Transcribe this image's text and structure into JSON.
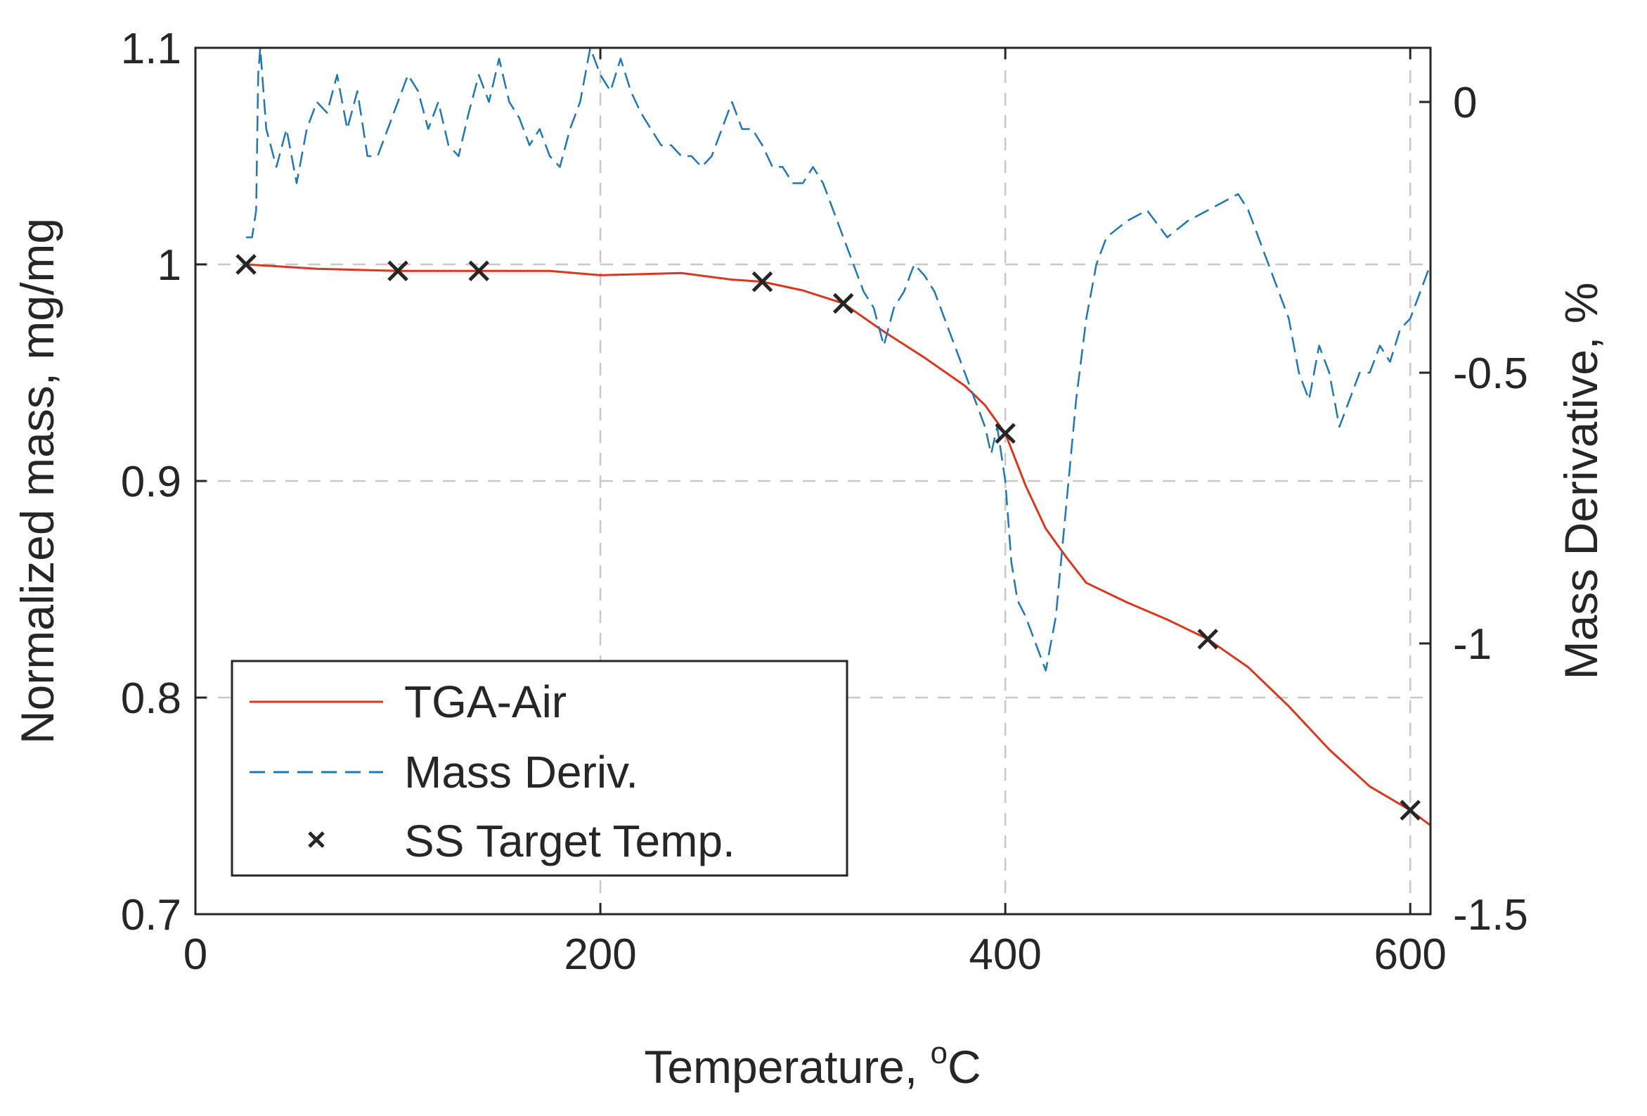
{
  "chart_data": {
    "type": "line",
    "xlabel": "Temperature, ",
    "xlabel_sup": "o",
    "xlabel_unit": "C",
    "ylabel_left": "Normalized mass, mg/mg",
    "ylabel_right": "Mass Derivative, %",
    "xlim": [
      0,
      610
    ],
    "ylim_left": [
      0.7,
      1.1
    ],
    "ylim_right": [
      -1.5,
      0.1
    ],
    "x_ticks": [
      "0",
      "200",
      "400",
      "600"
    ],
    "x_tick_values": [
      0,
      200,
      400,
      600
    ],
    "y_left_ticks": [
      "0.7",
      "0.8",
      "0.9",
      "1",
      "1.1"
    ],
    "y_left_tick_values": [
      0.7,
      0.8,
      0.9,
      1.0,
      1.1
    ],
    "y_right_ticks": [
      "-1.5",
      "-1",
      "-0.5",
      "0"
    ],
    "y_right_tick_values": [
      -1.5,
      -1.0,
      -0.5,
      0.0
    ],
    "grid": true,
    "legend_position": "bottom-left",
    "series": [
      {
        "name": "TGA-Air",
        "axis": "left",
        "style": "solid",
        "color": "#d9381e",
        "x": [
          25,
          60,
          100,
          140,
          175,
          200,
          240,
          265,
          280,
          300,
          320,
          340,
          360,
          380,
          390,
          400,
          410,
          420,
          430,
          440,
          460,
          480,
          500,
          520,
          540,
          560,
          580,
          600,
          610
        ],
        "y": [
          1.0,
          0.998,
          0.997,
          0.997,
          0.997,
          0.995,
          0.996,
          0.993,
          0.992,
          0.988,
          0.982,
          0.969,
          0.957,
          0.944,
          0.935,
          0.922,
          0.898,
          0.878,
          0.865,
          0.853,
          0.844,
          0.836,
          0.827,
          0.814,
          0.796,
          0.776,
          0.759,
          0.748,
          0.741
        ]
      },
      {
        "name": "Mass Deriv.",
        "axis": "right",
        "style": "dashed",
        "color": "#1f77b4",
        "x": [
          25,
          28,
          30,
          31,
          32,
          35,
          40,
          45,
          50,
          55,
          60,
          65,
          70,
          75,
          80,
          85,
          90,
          95,
          100,
          105,
          110,
          115,
          120,
          125,
          130,
          135,
          140,
          145,
          150,
          155,
          160,
          165,
          170,
          175,
          180,
          185,
          190,
          195,
          200,
          205,
          210,
          215,
          220,
          225,
          230,
          235,
          240,
          245,
          250,
          255,
          260,
          265,
          270,
          275,
          280,
          285,
          290,
          295,
          300,
          305,
          310,
          315,
          320,
          325,
          330,
          335,
          340,
          345,
          350,
          355,
          360,
          365,
          370,
          375,
          380,
          385,
          390,
          393,
          396,
          400,
          403,
          406,
          410,
          415,
          420,
          425,
          430,
          435,
          440,
          445,
          450,
          460,
          470,
          480,
          490,
          500,
          510,
          515,
          520,
          525,
          530,
          540,
          545,
          550,
          555,
          560,
          565,
          570,
          575,
          580,
          585,
          590,
          595,
          600,
          605,
          610
        ],
        "y": [
          -0.25,
          -0.25,
          -0.2,
          0.05,
          0.1,
          -0.05,
          -0.12,
          -0.05,
          -0.15,
          -0.05,
          0.0,
          -0.02,
          0.05,
          -0.05,
          0.02,
          -0.1,
          -0.1,
          -0.05,
          0.0,
          0.05,
          0.02,
          -0.05,
          0.0,
          -0.08,
          -0.1,
          -0.02,
          0.05,
          0.0,
          0.08,
          0.0,
          -0.03,
          -0.08,
          -0.05,
          -0.1,
          -0.12,
          -0.05,
          0.0,
          0.1,
          0.05,
          0.02,
          0.08,
          0.02,
          -0.02,
          -0.05,
          -0.08,
          -0.08,
          -0.1,
          -0.1,
          -0.12,
          -0.1,
          -0.05,
          0.0,
          -0.05,
          -0.05,
          -0.08,
          -0.12,
          -0.12,
          -0.15,
          -0.15,
          -0.12,
          -0.15,
          -0.2,
          -0.25,
          -0.3,
          -0.35,
          -0.38,
          -0.45,
          -0.38,
          -0.35,
          -0.3,
          -0.32,
          -0.35,
          -0.4,
          -0.45,
          -0.5,
          -0.55,
          -0.6,
          -0.65,
          -0.6,
          -0.7,
          -0.85,
          -0.92,
          -0.95,
          -1.0,
          -1.05,
          -0.95,
          -0.75,
          -0.55,
          -0.4,
          -0.3,
          -0.25,
          -0.22,
          -0.2,
          -0.25,
          -0.22,
          -0.2,
          -0.18,
          -0.17,
          -0.2,
          -0.25,
          -0.3,
          -0.4,
          -0.5,
          -0.55,
          -0.45,
          -0.5,
          -0.6,
          -0.55,
          -0.5,
          -0.5,
          -0.45,
          -0.48,
          -0.42,
          -0.4,
          -0.35,
          -0.3
        ]
      },
      {
        "name": "SS Target Temp.",
        "axis": "left",
        "style": "marker-x",
        "color": "#262626",
        "x": [
          25,
          100,
          140,
          280,
          320,
          400,
          500,
          600
        ],
        "y": [
          1.0,
          0.997,
          0.997,
          0.992,
          0.982,
          0.922,
          0.827,
          0.748
        ]
      }
    ]
  },
  "colors": {
    "tga": "#d9381e",
    "deriv": "#1f77b4",
    "marker": "#262626",
    "axis": "#262626",
    "grid": "#c8c8c8"
  }
}
